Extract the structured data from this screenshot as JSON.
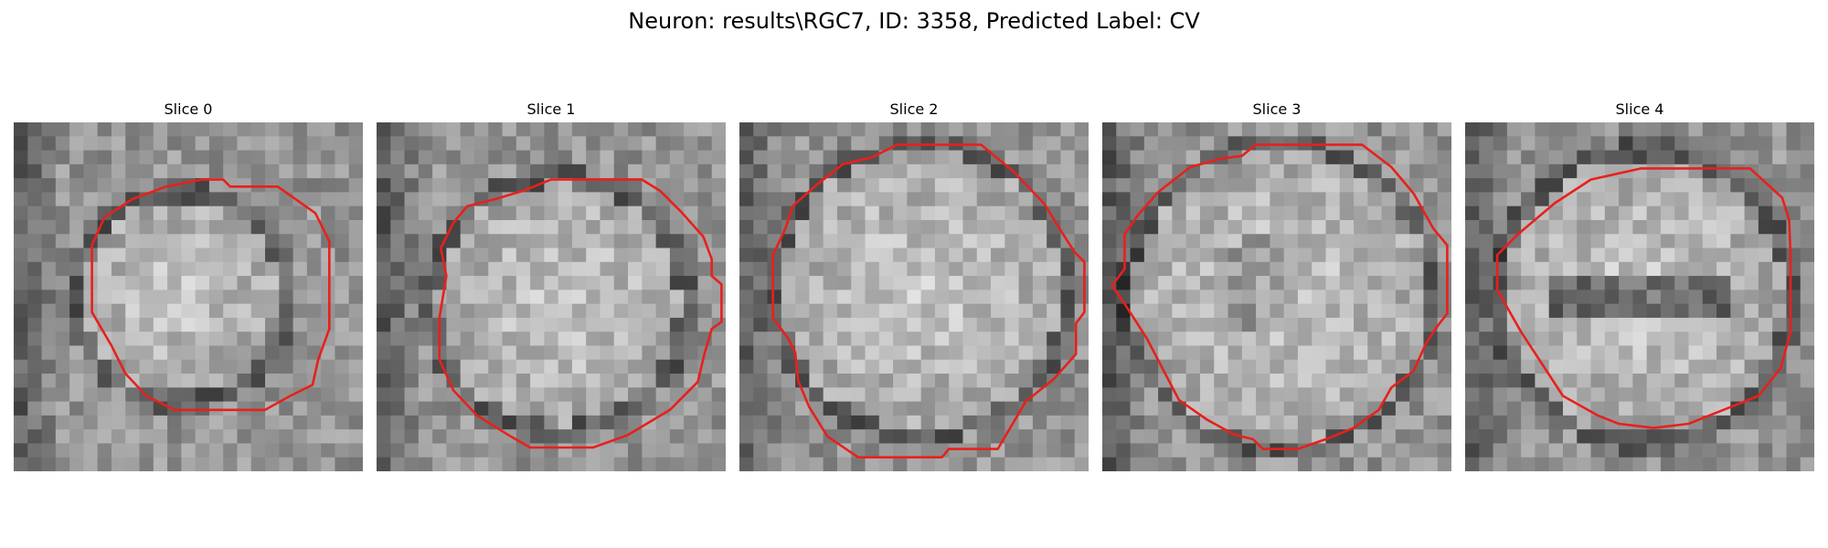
{
  "figure": {
    "title": "Neuron: results\\RGC7, ID: 3358, Predicted Label: CV"
  },
  "colors": {
    "background": "#ffffff",
    "contour": "#e8201c",
    "image_colormap": "grayscale"
  },
  "slices": [
    {
      "label": "Slice 0"
    },
    {
      "label": "Slice 1"
    },
    {
      "label": "Slice 2"
    },
    {
      "label": "Slice 3"
    },
    {
      "label": "Slice 4"
    }
  ]
}
